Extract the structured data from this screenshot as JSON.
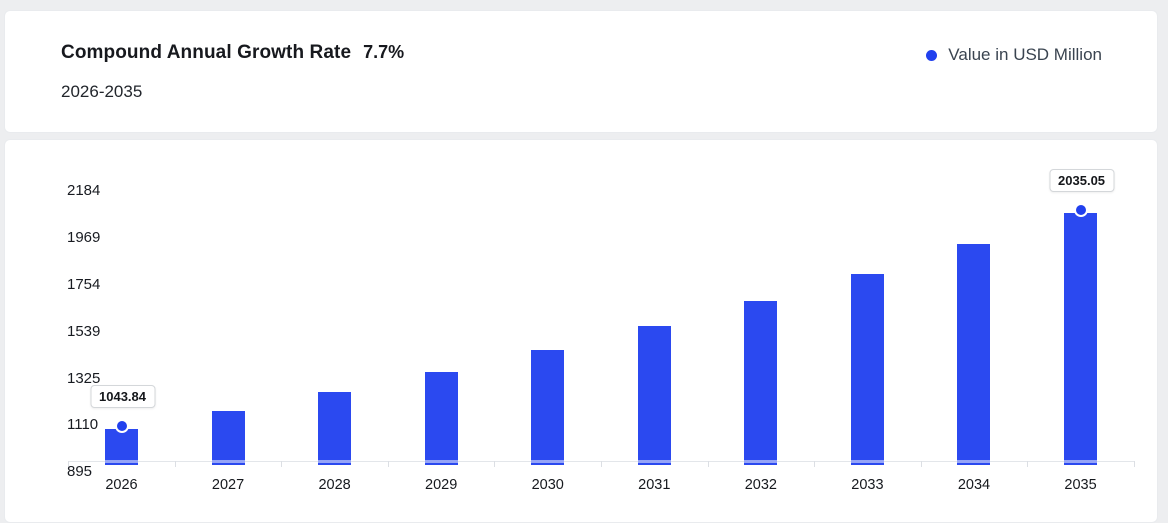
{
  "page": {
    "background_color": "#edeef0",
    "card_background": "#ffffff"
  },
  "header": {
    "title": "Compound Annual Growth Rate",
    "cagr_value": "7.7%",
    "period": "2026-2035",
    "legend": {
      "label": "Value in USD Million",
      "marker_color": "#2140ee"
    }
  },
  "chart_data": {
    "type": "bar",
    "title": "Compound Annual Growth Rate 7.7%, 2026-2035",
    "unit": "USD Million",
    "cagr": "7.7%",
    "categories": [
      "2026",
      "2027",
      "2028",
      "2029",
      "2030",
      "2031",
      "2032",
      "2033",
      "2034",
      "2035"
    ],
    "values": [
      1043.84,
      1124.2,
      1210.8,
      1304.1,
      1404.5,
      1512.7,
      1629.2,
      1754.7,
      1889.9,
      2035.05
    ],
    "value_labels": {
      "2026": "1043.84",
      "2035": "2035.05"
    },
    "y_ticks": [
      895,
      1110,
      1325,
      1539,
      1754,
      1969,
      2184
    ],
    "ylim": [
      895,
      2184
    ],
    "xlabel": "",
    "ylabel": "Value in USD Million",
    "grid": false,
    "legend_position": "top-right",
    "bar_color": "#2b49f0",
    "marker_color": "#2140ee"
  }
}
